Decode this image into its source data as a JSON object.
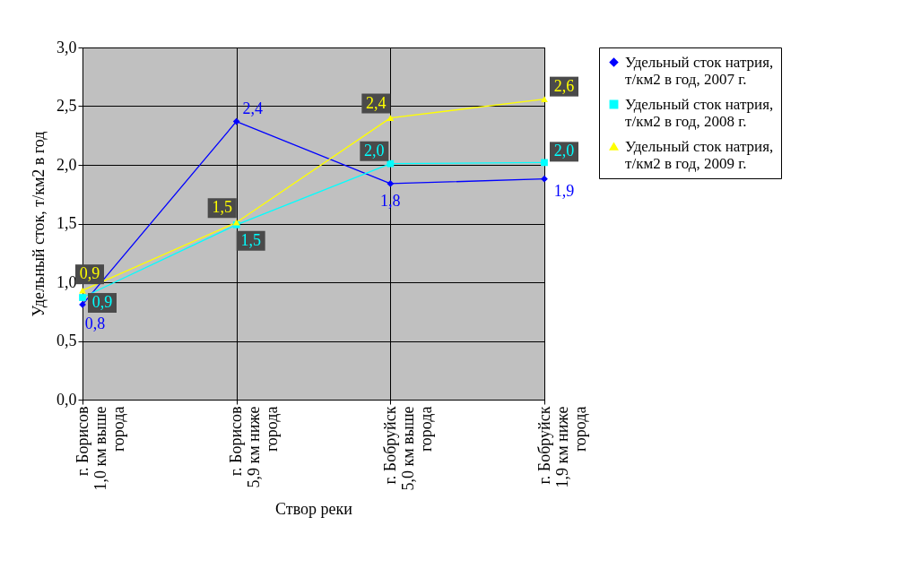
{
  "chart_data": {
    "type": "line",
    "xlabel": "Створ реки",
    "ylabel": "Удельный сток, т/км2 в год",
    "categories": [
      "г. Борисов\n1,0 км выше\nгорода",
      "г. Борисов\n5,9 км ниже\nгорода",
      "г. Бобруйск\n5,0 км выше\nгорода",
      "г. Бобруйск\n1,9 км ниже\nгорода"
    ],
    "series": [
      {
        "name": "Удельный сток натрия, т/км2 в год, 2007 г.",
        "color": "#0000ff",
        "marker": "diamond",
        "values": [
          0.81,
          2.37,
          1.84,
          1.88
        ],
        "value_labels": [
          "0,8",
          "2,4",
          "1,8",
          "1,9"
        ]
      },
      {
        "name": "Удельный сток натрия, т/км2 в год, 2008 г.",
        "color": "#00ffff",
        "marker": "square",
        "values": [
          0.87,
          1.49,
          2.01,
          2.02
        ],
        "value_labels": [
          "0,9",
          "1,5",
          "2,0",
          "2,0"
        ]
      },
      {
        "name": "Удельный сток натрия, т/км2 в год, 2009 г.",
        "color": "#ffff00",
        "marker": "triangle",
        "values": [
          0.93,
          1.51,
          2.4,
          2.56
        ],
        "value_labels": [
          "0,9",
          "1,5",
          "2,4",
          "2,6"
        ]
      }
    ],
    "ylim": [
      0,
      3
    ],
    "yticks": [
      {
        "value": 0,
        "label": "0,0"
      },
      {
        "value": 0.5,
        "label": "0,5"
      },
      {
        "value": 1,
        "label": "1,0"
      },
      {
        "value": 1.5,
        "label": "1,5"
      },
      {
        "value": 2,
        "label": "2,0"
      },
      {
        "value": 2.5,
        "label": "2,5"
      },
      {
        "value": 3,
        "label": "3,0"
      }
    ],
    "grid": true,
    "legend": "right"
  }
}
